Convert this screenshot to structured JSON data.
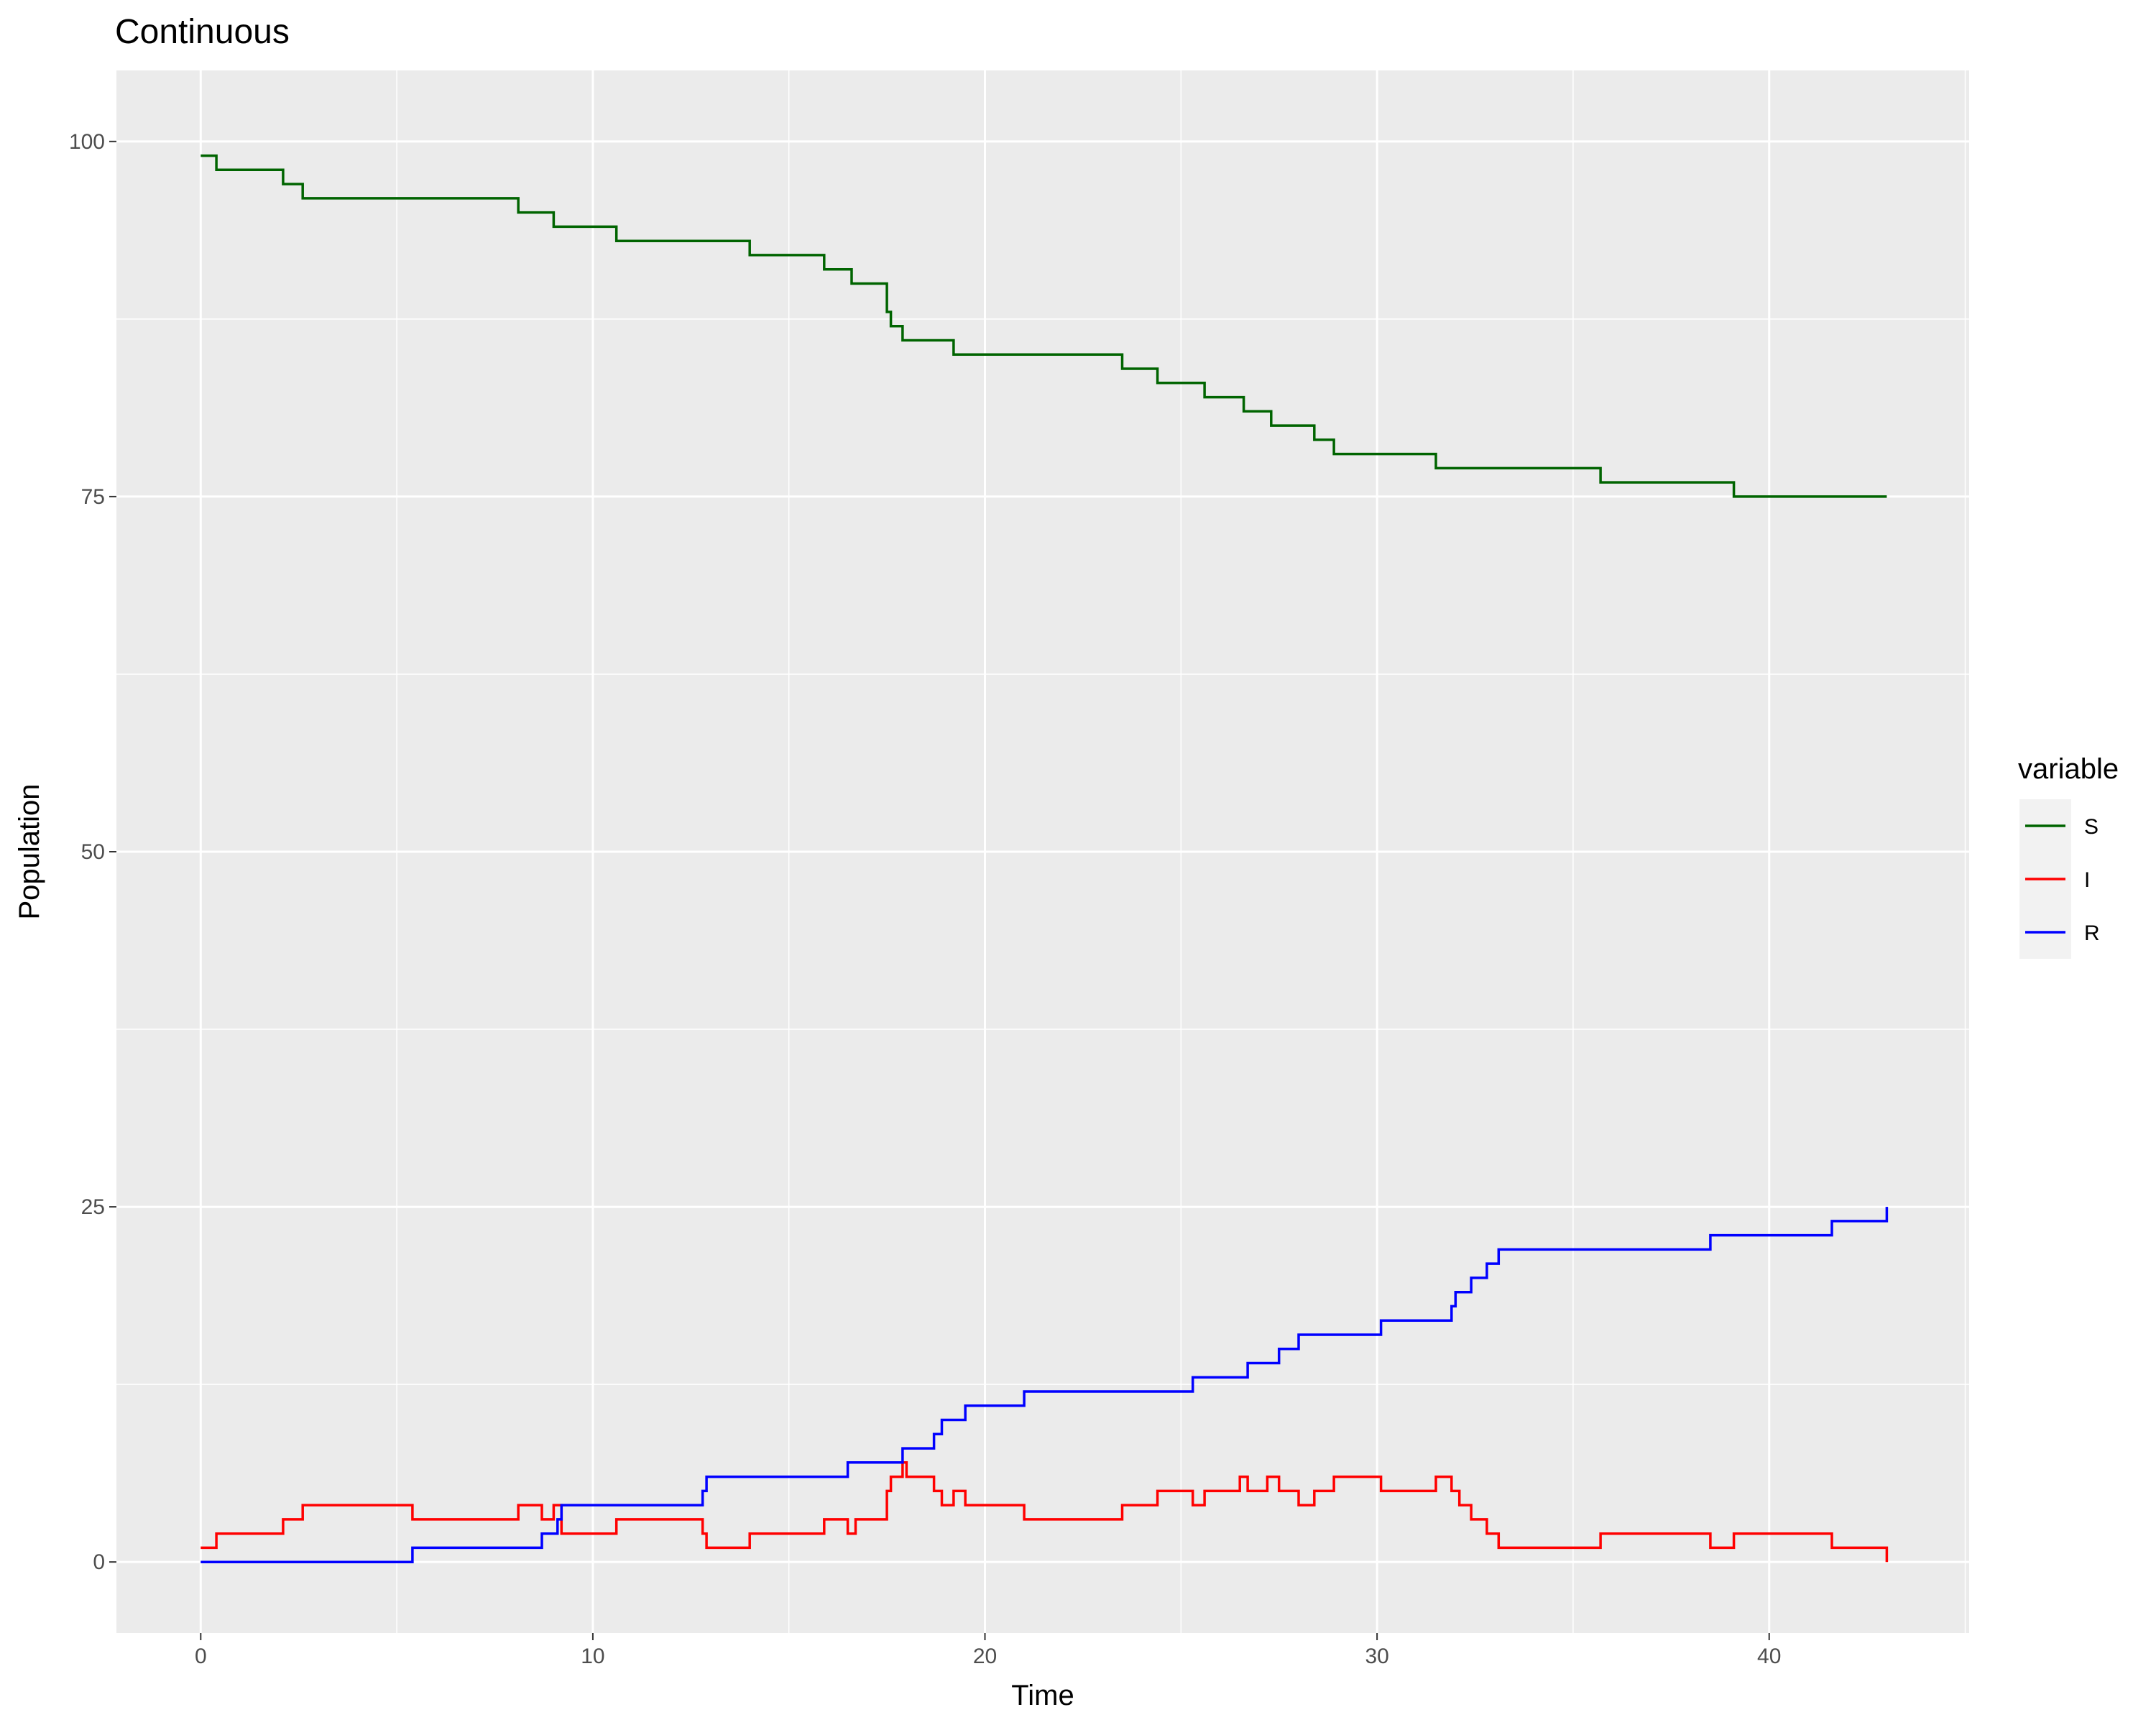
{
  "chart_data": {
    "type": "line",
    "step": true,
    "title": "Continuous",
    "xlabel": "Time",
    "ylabel": "Population",
    "xlim": [
      -2.15,
      45.1
    ],
    "ylim": [
      -5,
      105
    ],
    "x_ticks": [
      0,
      10,
      20,
      30,
      40
    ],
    "y_ticks": [
      0,
      25,
      50,
      75,
      100
    ],
    "x_tick_labels": [
      "0",
      "10",
      "20",
      "30",
      "40"
    ],
    "y_tick_labels": [
      "0",
      "25",
      "50",
      "75",
      "100"
    ],
    "grid": true,
    "legend": {
      "title": "variable",
      "position": "right"
    },
    "colors": {
      "S": "#006400",
      "I": "#ff0000",
      "R": "#0000ff",
      "panel": "#ebebeb",
      "grid": "#ffffff"
    },
    "series": [
      {
        "name": "S",
        "color": "#006400",
        "points": [
          [
            0,
            99
          ],
          [
            0.4,
            98
          ],
          [
            2.1,
            97
          ],
          [
            2.6,
            96
          ],
          [
            8.1,
            95
          ],
          [
            9.0,
            94
          ],
          [
            10.6,
            93
          ],
          [
            14.0,
            92
          ],
          [
            15.9,
            91
          ],
          [
            16.6,
            90
          ],
          [
            17.5,
            88
          ],
          [
            17.6,
            87
          ],
          [
            17.9,
            86
          ],
          [
            19.2,
            85
          ],
          [
            23.5,
            84
          ],
          [
            24.4,
            83
          ],
          [
            25.6,
            82
          ],
          [
            26.6,
            81
          ],
          [
            27.3,
            80
          ],
          [
            28.4,
            79
          ],
          [
            28.9,
            78
          ],
          [
            31.5,
            77
          ],
          [
            35.7,
            76
          ],
          [
            39.1,
            75
          ],
          [
            43.0,
            75
          ]
        ]
      },
      {
        "name": "I",
        "color": "#ff0000",
        "points": [
          [
            0,
            1
          ],
          [
            0.4,
            2
          ],
          [
            2.1,
            3
          ],
          [
            2.6,
            4
          ],
          [
            5.4,
            3
          ],
          [
            8.1,
            4
          ],
          [
            8.7,
            3
          ],
          [
            9.0,
            4
          ],
          [
            9.2,
            2
          ],
          [
            10.6,
            3
          ],
          [
            12.8,
            2
          ],
          [
            12.9,
            1
          ],
          [
            14.0,
            2
          ],
          [
            15.9,
            3
          ],
          [
            16.5,
            2
          ],
          [
            16.7,
            3
          ],
          [
            17.5,
            5
          ],
          [
            17.6,
            6
          ],
          [
            17.9,
            7
          ],
          [
            18.0,
            6
          ],
          [
            18.7,
            5
          ],
          [
            18.9,
            4
          ],
          [
            19.2,
            5
          ],
          [
            19.5,
            4
          ],
          [
            21.0,
            3
          ],
          [
            23.5,
            4
          ],
          [
            24.4,
            5
          ],
          [
            25.3,
            4
          ],
          [
            25.6,
            5
          ],
          [
            26.5,
            6
          ],
          [
            26.7,
            5
          ],
          [
            27.2,
            6
          ],
          [
            27.5,
            5
          ],
          [
            28.0,
            4
          ],
          [
            28.4,
            5
          ],
          [
            28.9,
            6
          ],
          [
            30.1,
            5
          ],
          [
            31.5,
            6
          ],
          [
            31.9,
            5
          ],
          [
            32.1,
            4
          ],
          [
            32.4,
            3
          ],
          [
            32.8,
            2
          ],
          [
            33.1,
            1
          ],
          [
            35.7,
            2
          ],
          [
            38.5,
            1
          ],
          [
            39.1,
            2
          ],
          [
            41.6,
            1
          ],
          [
            43.0,
            0
          ]
        ]
      },
      {
        "name": "R",
        "color": "#0000ff",
        "points": [
          [
            0,
            0
          ],
          [
            5.4,
            1
          ],
          [
            8.7,
            2
          ],
          [
            9.1,
            3
          ],
          [
            9.2,
            4
          ],
          [
            12.8,
            5
          ],
          [
            12.9,
            6
          ],
          [
            16.5,
            7
          ],
          [
            17.9,
            8
          ],
          [
            18.7,
            9
          ],
          [
            18.9,
            10
          ],
          [
            19.5,
            11
          ],
          [
            21.0,
            12
          ],
          [
            25.3,
            13
          ],
          [
            26.7,
            14
          ],
          [
            27.5,
            15
          ],
          [
            28.0,
            16
          ],
          [
            30.1,
            17
          ],
          [
            31.9,
            18
          ],
          [
            32.0,
            19
          ],
          [
            32.4,
            20
          ],
          [
            32.8,
            21
          ],
          [
            33.1,
            22
          ],
          [
            38.5,
            23
          ],
          [
            41.6,
            24
          ],
          [
            43.0,
            25
          ]
        ]
      }
    ]
  }
}
